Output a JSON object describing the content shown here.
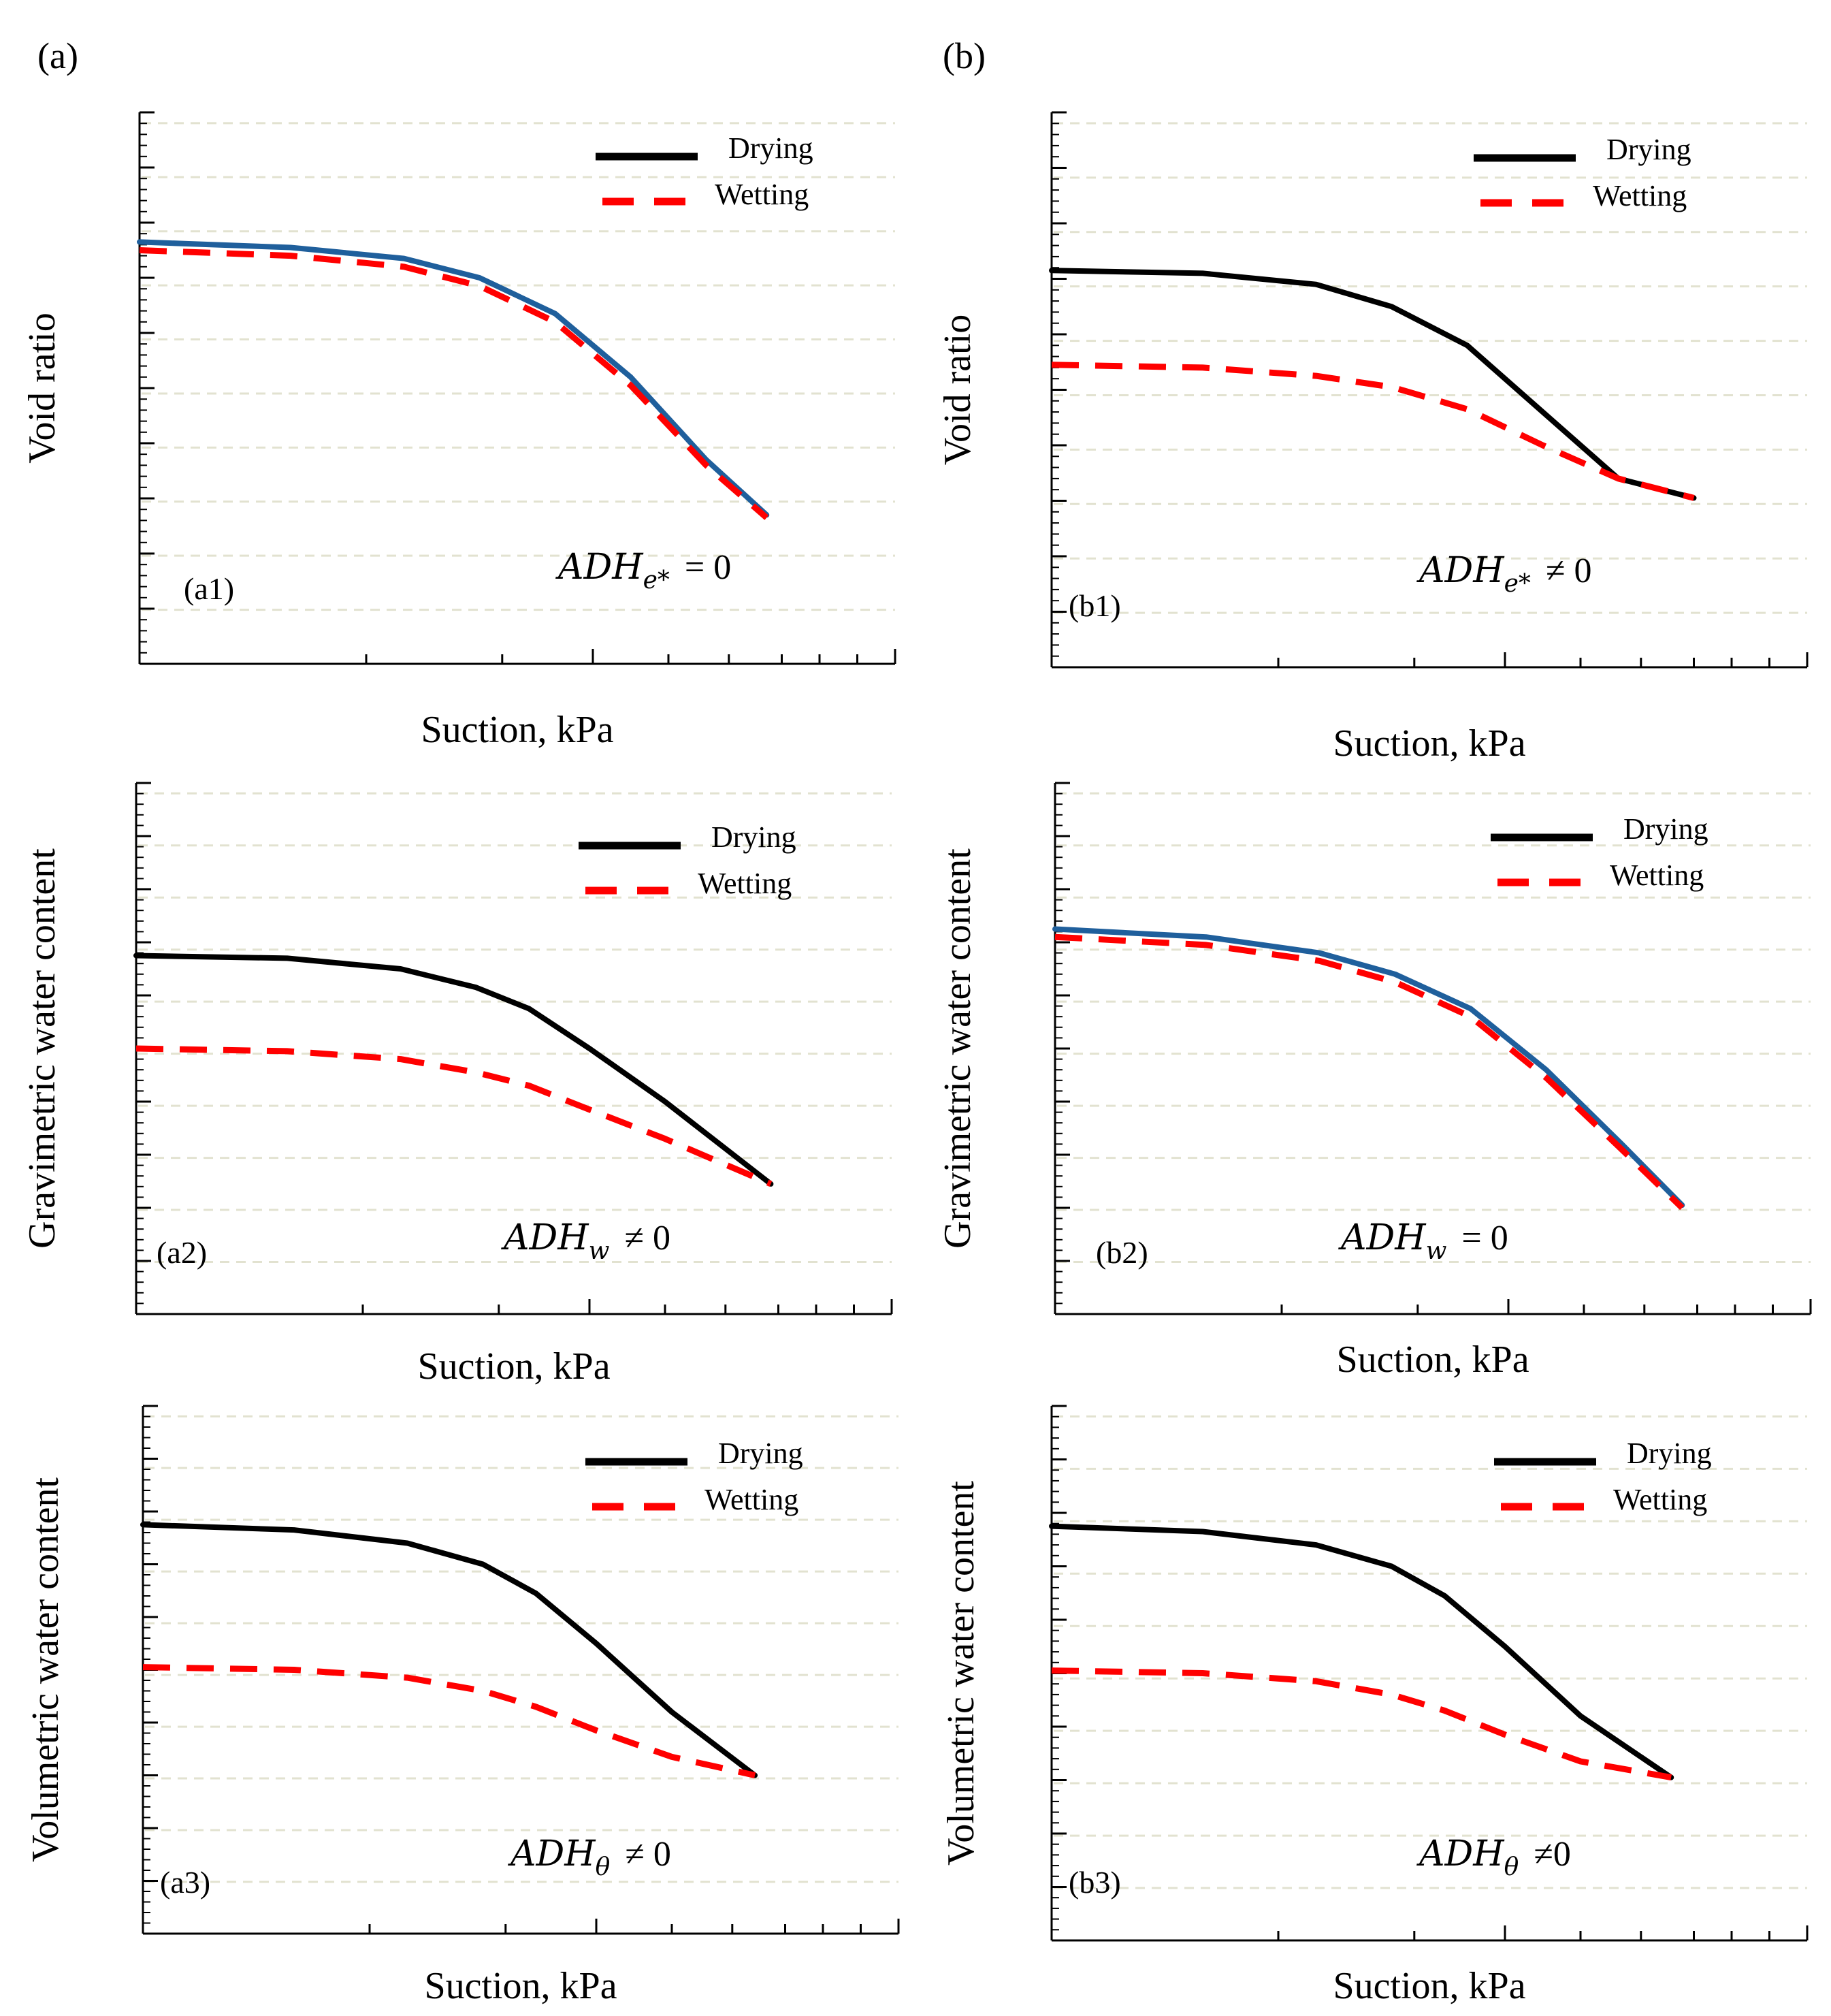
{
  "figure": {
    "column_labels": [
      "(a)",
      "(b)"
    ]
  },
  "colors": {
    "drying": "#000000",
    "wetting": "#ff0000",
    "overlay": "#1f5f9c",
    "axis": "#000000",
    "grid": "#e2e2d0"
  },
  "chart_data": [
    {
      "id": "a1",
      "type": "line",
      "tag": "(a1)",
      "xlabel": "Suction, kPa",
      "ylabel": "Void ratio",
      "annotation": {
        "symbol": "ADH",
        "sub": "e*",
        "relation": "= 0"
      },
      "legend": {
        "position": "top-right",
        "entries": [
          "Drying",
          "Wetting"
        ]
      },
      "x_range": [
        0,
        1
      ],
      "y_range": [
        0,
        1
      ],
      "grid": "horizontal-dashed",
      "series": [
        {
          "name": "Drying",
          "style": "solid",
          "color_key": "overlay",
          "x": [
            0,
            0.2,
            0.35,
            0.45,
            0.55,
            0.65,
            0.75,
            0.83
          ],
          "y": [
            0.765,
            0.755,
            0.735,
            0.7,
            0.635,
            0.52,
            0.37,
            0.27
          ]
        },
        {
          "name": "Wetting",
          "style": "dashed",
          "color_key": "wetting",
          "x": [
            0,
            0.2,
            0.35,
            0.45,
            0.55,
            0.65,
            0.75,
            0.83
          ],
          "y": [
            0.75,
            0.74,
            0.72,
            0.685,
            0.62,
            0.505,
            0.36,
            0.265
          ]
        }
      ]
    },
    {
      "id": "b1",
      "type": "line",
      "tag": "(b1)",
      "xlabel": "Suction, kPa",
      "ylabel": "Void ratio",
      "annotation": {
        "symbol": "ADH",
        "sub": "e*",
        "relation": "≠ 0"
      },
      "legend": {
        "position": "top-right",
        "entries": [
          "Drying",
          "Wetting"
        ]
      },
      "x_range": [
        0,
        1
      ],
      "y_range": [
        0,
        1
      ],
      "grid": "horizontal-dashed",
      "series": [
        {
          "name": "Drying",
          "style": "solid",
          "color_key": "drying",
          "x": [
            0,
            0.2,
            0.35,
            0.45,
            0.55,
            0.65,
            0.75,
            0.85
          ],
          "y": [
            0.715,
            0.71,
            0.69,
            0.65,
            0.58,
            0.46,
            0.34,
            0.305
          ]
        },
        {
          "name": "Wetting",
          "style": "dashed",
          "color_key": "wetting",
          "x": [
            0,
            0.2,
            0.35,
            0.45,
            0.55,
            0.65,
            0.75,
            0.85
          ],
          "y": [
            0.545,
            0.54,
            0.525,
            0.505,
            0.465,
            0.4,
            0.34,
            0.305
          ]
        }
      ]
    },
    {
      "id": "a2",
      "type": "line",
      "tag": "(a2)",
      "xlabel": "Suction, kPa",
      "ylabel": "Gravimetric  water content",
      "annotation": {
        "symbol": "ADH",
        "sub": "w",
        "relation": "≠ 0"
      },
      "legend": {
        "position": "top-right",
        "entries": [
          "Drying",
          "Wetting"
        ]
      },
      "x_range": [
        0,
        1
      ],
      "y_range": [
        0,
        1
      ],
      "grid": "horizontal-dashed",
      "series": [
        {
          "name": "Drying",
          "style": "solid",
          "color_key": "drying",
          "x": [
            0,
            0.2,
            0.35,
            0.45,
            0.52,
            0.6,
            0.7,
            0.84
          ],
          "y": [
            0.675,
            0.67,
            0.65,
            0.615,
            0.575,
            0.5,
            0.4,
            0.245
          ]
        },
        {
          "name": "Wetting",
          "style": "dashed",
          "color_key": "wetting",
          "x": [
            0,
            0.2,
            0.35,
            0.45,
            0.52,
            0.6,
            0.7,
            0.84
          ],
          "y": [
            0.5,
            0.495,
            0.48,
            0.455,
            0.43,
            0.385,
            0.33,
            0.245
          ]
        }
      ]
    },
    {
      "id": "b2",
      "type": "line",
      "tag": "(b2)",
      "xlabel": "Suction, kPa",
      "ylabel": "Gravimetric  water content",
      "annotation": {
        "symbol": "ADH",
        "sub": "w",
        "relation": "= 0"
      },
      "legend": {
        "position": "top-right",
        "entries": [
          "Drying",
          "Wetting"
        ]
      },
      "x_range": [
        0,
        1
      ],
      "y_range": [
        0,
        1
      ],
      "grid": "horizontal-dashed",
      "series": [
        {
          "name": "Drying",
          "style": "solid",
          "color_key": "overlay",
          "x": [
            0,
            0.2,
            0.35,
            0.45,
            0.55,
            0.65,
            0.75,
            0.83
          ],
          "y": [
            0.725,
            0.71,
            0.68,
            0.64,
            0.575,
            0.46,
            0.32,
            0.205
          ]
        },
        {
          "name": "Wetting",
          "style": "dashed",
          "color_key": "wetting",
          "x": [
            0,
            0.2,
            0.35,
            0.45,
            0.55,
            0.65,
            0.75,
            0.83
          ],
          "y": [
            0.71,
            0.695,
            0.665,
            0.625,
            0.56,
            0.445,
            0.31,
            0.2
          ]
        }
      ]
    },
    {
      "id": "a3",
      "type": "line",
      "tag": "(a3)",
      "xlabel": "Suction, kPa",
      "ylabel": "Volumetric water content",
      "annotation": {
        "symbol": "ADH",
        "sub": "θ",
        "relation": "≠ 0"
      },
      "legend": {
        "position": "top-right",
        "entries": [
          "Drying",
          "Wetting"
        ]
      },
      "x_range": [
        0,
        1
      ],
      "y_range": [
        0,
        1
      ],
      "grid": "horizontal-dashed",
      "series": [
        {
          "name": "Drying",
          "style": "solid",
          "color_key": "drying",
          "x": [
            0,
            0.2,
            0.35,
            0.45,
            0.52,
            0.6,
            0.7,
            0.81
          ],
          "y": [
            0.775,
            0.765,
            0.74,
            0.7,
            0.645,
            0.55,
            0.42,
            0.3
          ]
        },
        {
          "name": "Wetting",
          "style": "dashed",
          "color_key": "wetting",
          "x": [
            0,
            0.2,
            0.35,
            0.45,
            0.52,
            0.6,
            0.7,
            0.81
          ],
          "y": [
            0.505,
            0.5,
            0.485,
            0.46,
            0.43,
            0.385,
            0.335,
            0.3
          ]
        }
      ]
    },
    {
      "id": "b3",
      "type": "line",
      "tag": "(b3)",
      "xlabel": "Suction, kPa",
      "ylabel": "Volumetric water content",
      "annotation": {
        "symbol": "ADH",
        "sub": "θ",
        "relation": "≠0"
      },
      "legend": {
        "position": "top-right",
        "entries": [
          "Drying",
          "Wetting"
        ]
      },
      "x_range": [
        0,
        1
      ],
      "y_range": [
        0,
        1
      ],
      "grid": "horizontal-dashed",
      "series": [
        {
          "name": "Drying",
          "style": "solid",
          "color_key": "drying",
          "x": [
            0,
            0.2,
            0.35,
            0.45,
            0.52,
            0.6,
            0.7,
            0.82
          ],
          "y": [
            0.775,
            0.765,
            0.74,
            0.7,
            0.645,
            0.55,
            0.42,
            0.305
          ]
        },
        {
          "name": "Wetting",
          "style": "dashed",
          "color_key": "wetting",
          "x": [
            0,
            0.2,
            0.35,
            0.45,
            0.52,
            0.6,
            0.7,
            0.82
          ],
          "y": [
            0.505,
            0.5,
            0.485,
            0.46,
            0.43,
            0.385,
            0.335,
            0.305
          ]
        }
      ]
    }
  ]
}
